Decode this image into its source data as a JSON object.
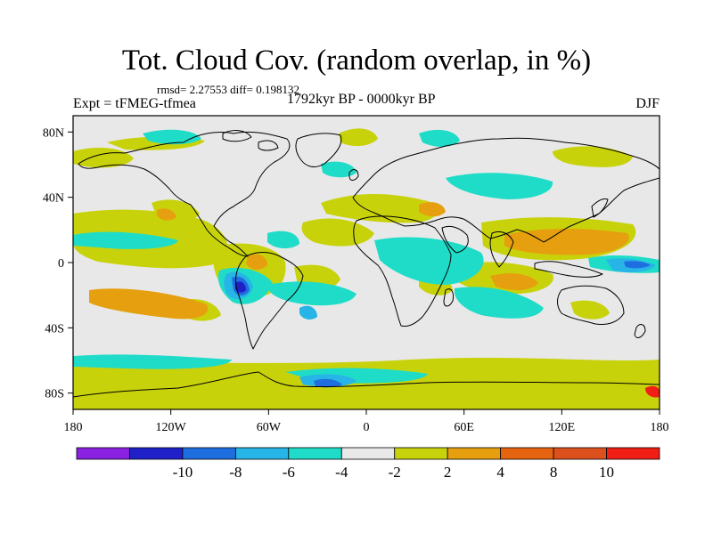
{
  "header": {
    "title": "Tot. Cloud Cov. (random overlap, in %)",
    "stats": "rmsd= 2.27553 diff= 0.198132",
    "experiment": "Expt = tFMEG-tfmea",
    "period": "1792kyr BP - 0000kyr BP",
    "season": "DJF"
  },
  "map": {
    "lat_ticks": [
      {
        "value": 80,
        "label": "80N"
      },
      {
        "value": 40,
        "label": "40N"
      },
      {
        "value": 0,
        "label": "0"
      },
      {
        "value": -40,
        "label": "40S"
      },
      {
        "value": -80,
        "label": "80S"
      }
    ],
    "lon_ticks": [
      {
        "value": -180,
        "label": "180"
      },
      {
        "value": -120,
        "label": "120W"
      },
      {
        "value": -60,
        "label": "60W"
      },
      {
        "value": 0,
        "label": "0"
      },
      {
        "value": 60,
        "label": "60E"
      },
      {
        "value": 120,
        "label": "120E"
      },
      {
        "value": 180,
        "label": "180"
      }
    ],
    "background_color": "#e8e8e8",
    "coastline_color": "#000000"
  },
  "colorbar": {
    "colors": [
      "#8a21e0",
      "#2020c8",
      "#1f6ee0",
      "#27b4e6",
      "#1fdcc8",
      "#e8e8e8",
      "#c8d20a",
      "#e6a00f",
      "#e66410",
      "#dc501e",
      "#f01e14"
    ],
    "labels": [
      "-10",
      "-8",
      "-6",
      "-4",
      "-2",
      "2",
      "4",
      "8",
      "10"
    ]
  }
}
